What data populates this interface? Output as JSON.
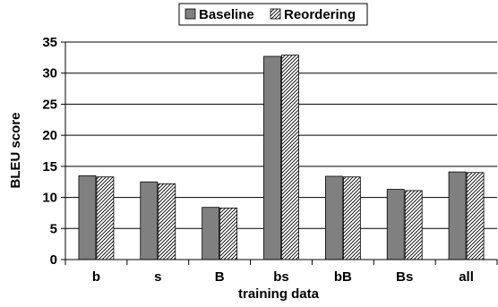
{
  "chart_data": {
    "type": "bar",
    "categories": [
      "b",
      "s",
      "B",
      "bs",
      "bB",
      "Bs",
      "all"
    ],
    "series": [
      {
        "name": "Baseline",
        "values": [
          13.5,
          12.5,
          8.4,
          32.7,
          13.4,
          11.3,
          14.1
        ],
        "color": "#808080",
        "pattern": "solid"
      },
      {
        "name": "Reordering",
        "values": [
          13.3,
          12.2,
          8.3,
          32.9,
          13.3,
          11.1,
          14.0
        ],
        "color": "#ffffff",
        "pattern": "diagonal-hatch"
      }
    ],
    "xlabel": "training data",
    "ylabel": "BLEU score",
    "ylim": [
      0,
      35
    ],
    "yticks": [
      0,
      5,
      10,
      15,
      20,
      25,
      30,
      35
    ],
    "grid": true,
    "legend_position": "top-center"
  }
}
